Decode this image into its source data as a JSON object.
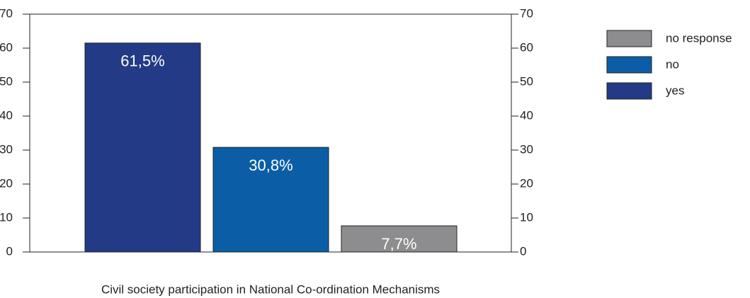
{
  "chart_data": {
    "type": "bar",
    "title": "Civil society participation in National Co-ordination Mechanisms",
    "series": [
      {
        "name": "yes",
        "color": "#233a86",
        "values": [
          61.5
        ],
        "value_labels": [
          "61,5%"
        ]
      },
      {
        "name": "no",
        "color": "#0b5ea6",
        "values": [
          30.8
        ],
        "value_labels": [
          "30,8%"
        ]
      },
      {
        "name": "no response",
        "color": "#8d8d8f",
        "values": [
          7.7
        ],
        "value_labels": [
          "7,7%"
        ]
      }
    ],
    "ylim": [
      0,
      70
    ],
    "yticks": [
      0,
      10,
      20,
      30,
      40,
      50,
      60,
      70
    ],
    "y2lim": [
      0,
      70
    ],
    "y2ticks": [
      0,
      10,
      20,
      30,
      40,
      50,
      60,
      70
    ],
    "legend": "right",
    "grid": false
  }
}
